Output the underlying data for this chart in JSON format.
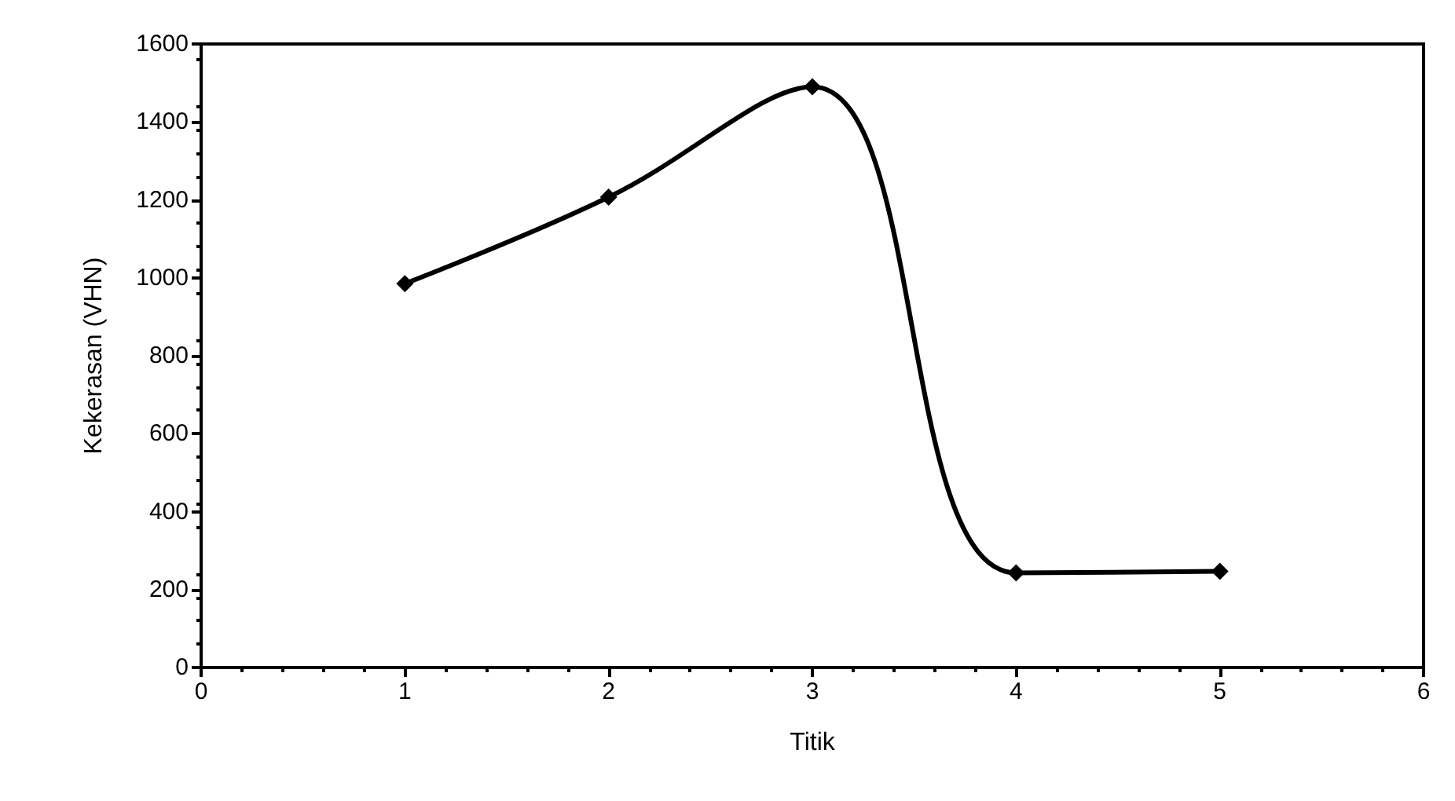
{
  "chart_data": {
    "type": "line",
    "xlabel": "Titik",
    "ylabel": "Kekerasan (VHN)",
    "x": [
      1,
      2,
      3,
      4,
      5
    ],
    "series": [
      {
        "color": "#000000",
        "values": [
          985,
          1207,
          1490,
          243,
          247
        ]
      }
    ],
    "xlim": [
      0,
      6
    ],
    "xticks": [
      0,
      1,
      2,
      3,
      4,
      5,
      6
    ],
    "ylim": [
      0,
      1600
    ],
    "yticks": [
      0,
      200,
      400,
      600,
      800,
      1000,
      1200,
      1400,
      1600
    ],
    "grid": false,
    "marker": "diamond",
    "line_style": "solid"
  }
}
